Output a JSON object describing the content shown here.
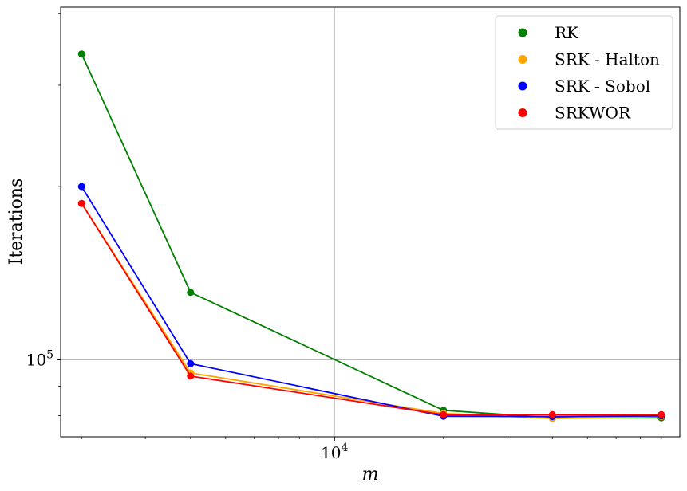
{
  "chart_data": {
    "type": "line",
    "xscale": "log",
    "yscale": "log",
    "xlabel": "m",
    "ylabel": "Iterations",
    "x_ticks": [
      {
        "value": 10000,
        "label": "10^4"
      }
    ],
    "y_ticks": [
      {
        "value": 100000,
        "label": "10^5"
      }
    ],
    "xlim": [
      1750,
      90000
    ],
    "ylim": [
      73500,
      410000
    ],
    "grid": true,
    "legend_position": "top-right",
    "x": [
      2000,
      4000,
      20000,
      40000,
      80000
    ],
    "series": [
      {
        "name": "RK",
        "color": "#008000",
        "values": [
          340000,
          131000,
          81700,
          79300,
          79300
        ]
      },
      {
        "name": "SRK - Halton",
        "color": "#ffa500",
        "values": [
          187000,
          94900,
          80700,
          79100,
          79700
        ]
      },
      {
        "name": "SRK - Sobol",
        "color": "#0000ff",
        "values": [
          200000,
          98500,
          79800,
          79700,
          79900
        ]
      },
      {
        "name": "SRKWOR",
        "color": "#ff0000",
        "values": [
          187000,
          93700,
          80300,
          80300,
          80300
        ]
      }
    ]
  }
}
